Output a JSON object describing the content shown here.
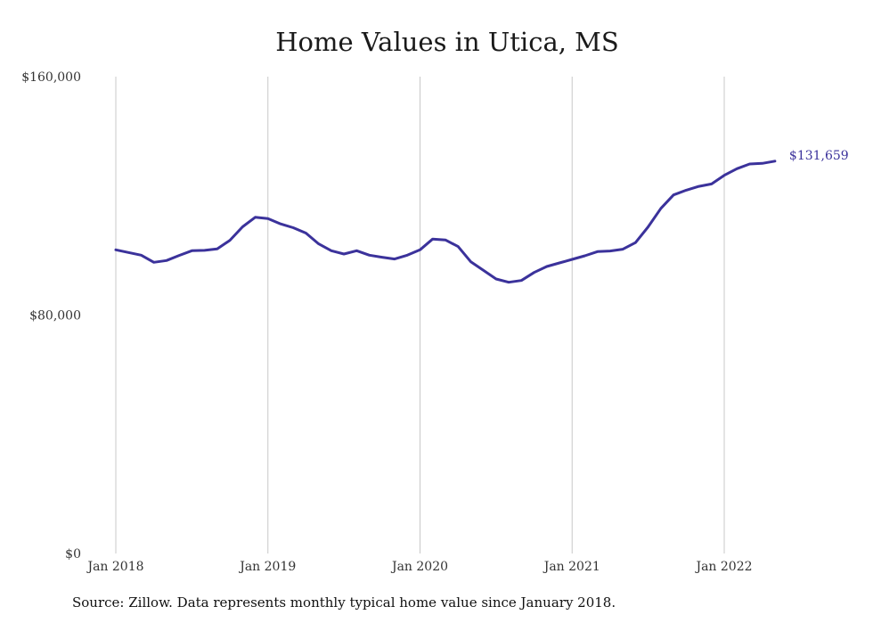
{
  "chart_data": {
    "type": "line",
    "title": "Home Values in Utica, MS",
    "xlabel": "",
    "ylabel": "",
    "ylim": [
      0,
      160000
    ],
    "y_ticks": [
      {
        "value": 0,
        "label": "$0"
      },
      {
        "value": 80000,
        "label": "$80,000"
      },
      {
        "value": 160000,
        "label": "$160,000"
      }
    ],
    "x_ticks": [
      {
        "value": "2018-01",
        "label": "Jan 2018"
      },
      {
        "value": "2019-01",
        "label": "Jan 2019"
      },
      {
        "value": "2020-01",
        "label": "Jan 2020"
      },
      {
        "value": "2021-01",
        "label": "Jan 2021"
      },
      {
        "value": "2022-01",
        "label": "Jan 2022"
      }
    ],
    "grid": "vertical",
    "series": [
      {
        "color": "#3b329b",
        "end_label": "$131,659",
        "x": [
          "2018-01",
          "2018-02",
          "2018-03",
          "2018-04",
          "2018-05",
          "2018-06",
          "2018-07",
          "2018-08",
          "2018-09",
          "2018-10",
          "2018-11",
          "2018-12",
          "2019-01",
          "2019-02",
          "2019-03",
          "2019-04",
          "2019-05",
          "2019-06",
          "2019-07",
          "2019-08",
          "2019-09",
          "2019-10",
          "2019-11",
          "2019-12",
          "2020-01",
          "2020-02",
          "2020-03",
          "2020-04",
          "2020-05",
          "2020-06",
          "2020-07",
          "2020-08",
          "2020-09",
          "2020-10",
          "2020-11",
          "2020-12",
          "2021-01",
          "2021-02",
          "2021-03",
          "2021-04",
          "2021-05",
          "2021-06",
          "2021-07",
          "2021-08",
          "2021-09",
          "2021-10",
          "2021-11",
          "2021-12",
          "2022-01",
          "2022-02",
          "2022-03",
          "2022-04",
          "2022-05"
        ],
        "values": [
          101900,
          101000,
          100100,
          97700,
          98300,
          100000,
          101600,
          101700,
          102200,
          105100,
          109600,
          112800,
          112400,
          110600,
          109300,
          107500,
          103900,
          101600,
          100500,
          101600,
          100100,
          99400,
          98800,
          100100,
          101900,
          105500,
          105200,
          103000,
          97900,
          95000,
          92100,
          91000,
          91600,
          94300,
          96300,
          97500,
          98700,
          99900,
          101300,
          101500,
          102100,
          104300,
          109600,
          115800,
          120300,
          121900,
          123200,
          124000,
          126900,
          129100,
          130700,
          130900,
          131659
        ]
      }
    ]
  },
  "footer": {
    "source": "Source: Zillow. Data represents monthly typical home value since January 2018."
  }
}
